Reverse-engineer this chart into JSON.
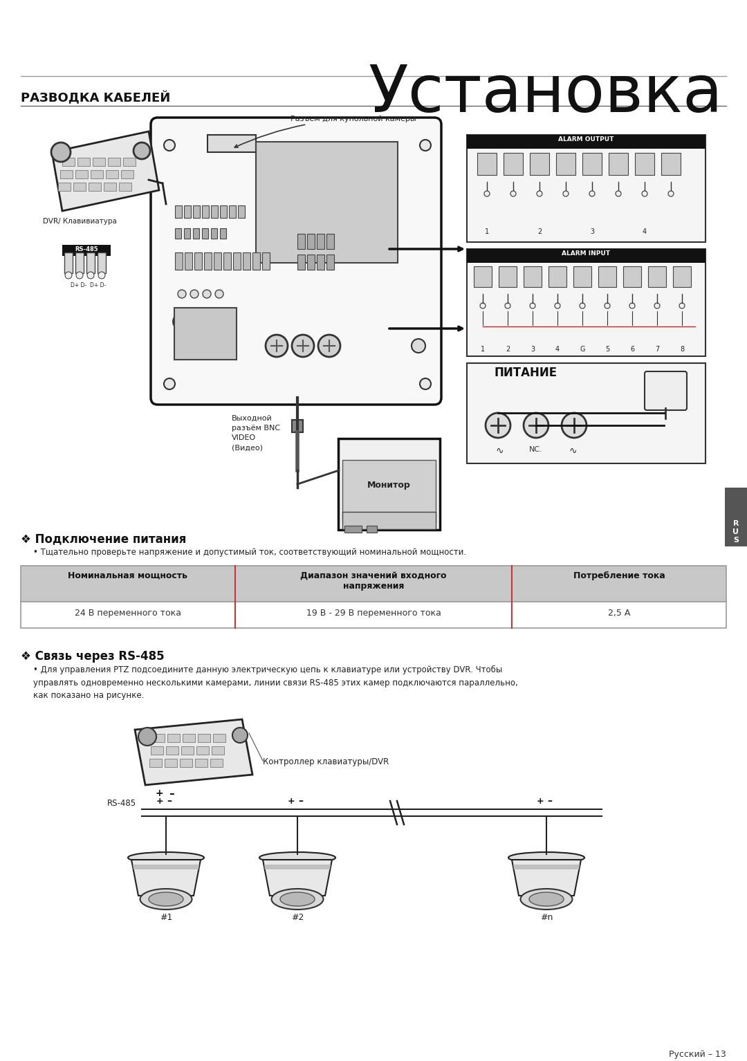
{
  "title": "Установка",
  "section1_title": "РАЗВОДКА КАБЕЛЕЙ",
  "section2_title": "❖ Подключение питания",
  "section2_bullet": "• Тщательно проверьте напряжение и допустимый ток, соответствующий номинальной мощности.",
  "table_headers": [
    "Номинальная мощность",
    "Диапазон значений входного\nнапряжения",
    "Потребление тока"
  ],
  "table_row": [
    "24 В переменного тока",
    "19 В - 29 В переменного тока",
    "2,5 А"
  ],
  "section3_title": "❖ Связь через RS-485",
  "section3_bullet": "• Для управления PTZ подсоедините данную электрическую цепь к клавиатуре или устройству DVR. Чтобы\nуправлять одновременно несколькими камерами, линии связи RS-485 этих камер подключаются параллельно,\nкак показано на рисунке.",
  "rs485_label": "RS-485",
  "controller_label": "Контроллер клавиатуры/DVR",
  "cam_labels": [
    "#1",
    "#2",
    "#n"
  ],
  "footer": "Русский – 13",
  "bg_color": "#ffffff",
  "header_bg": "#c0c0c0",
  "dark_header_bg": "#111111",
  "table_border": "#888888",
  "divider_color": "#cc3333"
}
